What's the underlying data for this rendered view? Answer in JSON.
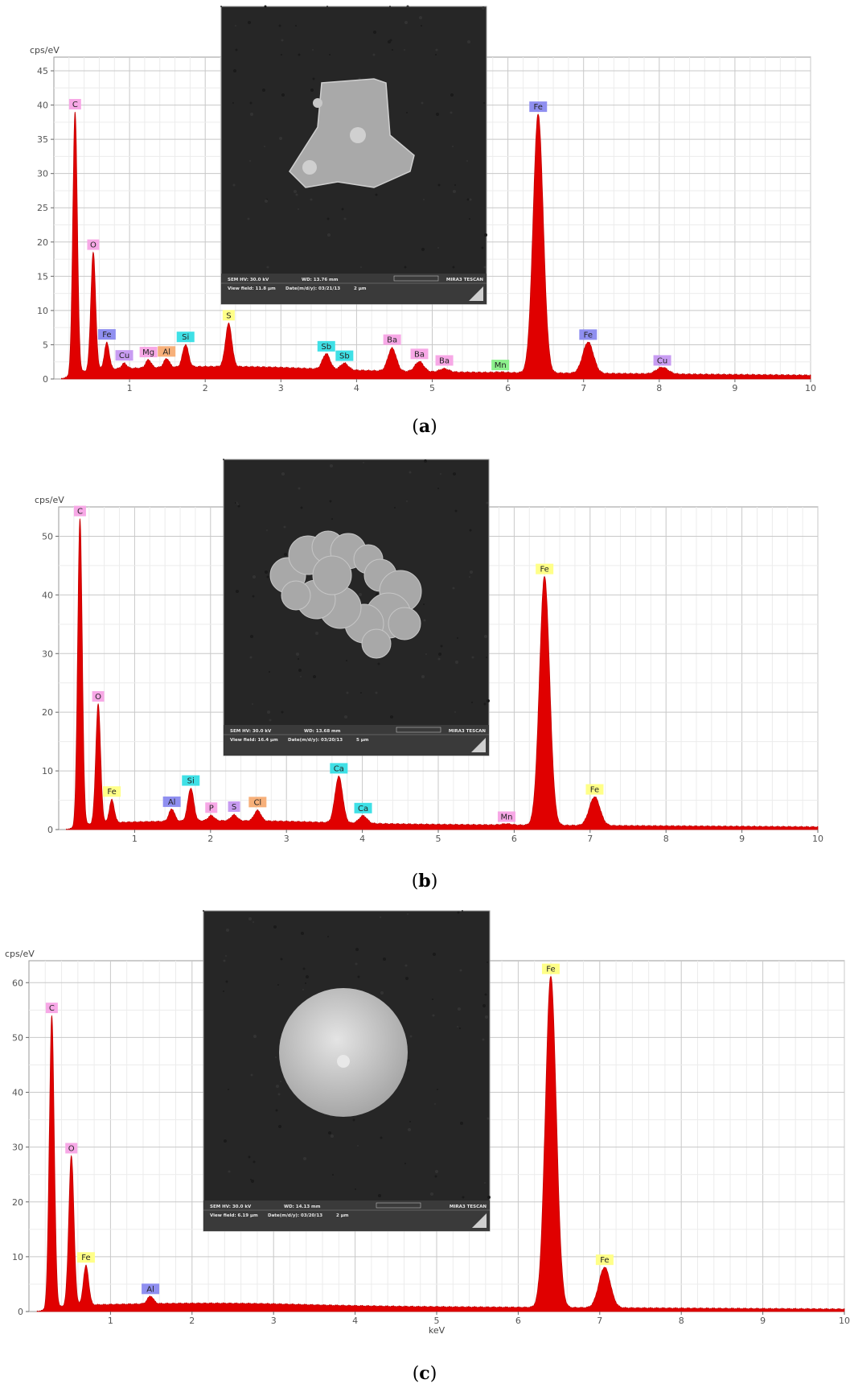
{
  "colors": {
    "spectrum_fill": "#e00000",
    "spectrum_stroke": "#c40000",
    "grid_major": "#c8c8c8",
    "grid_minor": "#ececec",
    "label_pink": "#f7a8e6",
    "label_blue": "#8f8ff0",
    "label_cyan": "#3fe0e6",
    "label_yellow": "#ffff88",
    "label_orange": "#f7b07a",
    "label_green": "#8cf08c",
    "label_violet": "#c89cf2",
    "sem_background": "#262626",
    "sem_particle": "#bdbdbd"
  },
  "chart_data": [
    {
      "type": "area",
      "caption": "(a)",
      "caption_letter": "a",
      "ylabel": "cps/eV",
      "xlabel": "",
      "xlim": [
        0,
        10
      ],
      "ylim": [
        0,
        47
      ],
      "x_ticks": [
        1,
        2,
        3,
        4,
        5,
        6,
        7,
        8,
        9,
        10
      ],
      "y_ticks": [
        0,
        5,
        10,
        15,
        20,
        25,
        30,
        35,
        40,
        45
      ],
      "grid": true,
      "baseline": 1.2,
      "peaks": [
        {
          "label": "C",
          "x": 0.28,
          "y": 39,
          "color": "pink"
        },
        {
          "label": "O",
          "x": 0.52,
          "y": 18,
          "color": "pink"
        },
        {
          "label": "Fe",
          "x": 0.7,
          "y": 4.6,
          "color": "blue"
        },
        {
          "label": "Cu",
          "x": 0.93,
          "y": 1.5,
          "color": "violet"
        },
        {
          "label": "Mg",
          "x": 1.25,
          "y": 1.9,
          "color": "pink"
        },
        {
          "label": "Al",
          "x": 1.49,
          "y": 2.0,
          "color": "orange"
        },
        {
          "label": "Si",
          "x": 1.74,
          "y": 4.0,
          "color": "cyan"
        },
        {
          "label": "S",
          "x": 2.31,
          "y": 7.0,
          "color": "yellow"
        },
        {
          "label": "Sb",
          "x": 3.6,
          "y": 3.0,
          "color": "cyan"
        },
        {
          "label": "Sb",
          "x": 3.84,
          "y": 1.7,
          "color": "cyan"
        },
        {
          "label": "Ba",
          "x": 4.47,
          "y": 4.1,
          "color": "pink"
        },
        {
          "label": "Ba",
          "x": 4.83,
          "y": 2.2,
          "color": "pink"
        },
        {
          "label": "Ba",
          "x": 5.16,
          "y": 1.2,
          "color": "pink"
        },
        {
          "label": "Mn",
          "x": 5.9,
          "y": 0.8,
          "color": "green"
        },
        {
          "label": "Fe",
          "x": 6.4,
          "y": 38.5,
          "color": "blue"
        },
        {
          "label": "Fe",
          "x": 7.06,
          "y": 5.3,
          "color": "blue"
        },
        {
          "label": "Cu",
          "x": 8.04,
          "y": 1.7,
          "color": "violet"
        }
      ],
      "sem": {
        "hv": "SEM HV: 30.0 kV",
        "wd": "WD: 13.76 mm",
        "brand": "MIRA3 TESCAN",
        "view_field": "View field: 11.8 µm",
        "date": "Date(m/d/y): 03/21/13",
        "scale": "2 µm"
      }
    },
    {
      "type": "area",
      "caption": "(b)",
      "caption_letter": "b",
      "ylabel": "cps/eV",
      "xlabel": "",
      "xlim": [
        0,
        10
      ],
      "ylim": [
        0,
        55
      ],
      "x_ticks": [
        1,
        2,
        3,
        4,
        5,
        6,
        7,
        8,
        9,
        10
      ],
      "y_ticks": [
        0,
        10,
        20,
        30,
        40,
        50
      ],
      "grid": true,
      "baseline": 1.0,
      "peaks": [
        {
          "label": "C",
          "x": 0.28,
          "y": 53,
          "color": "pink"
        },
        {
          "label": "O",
          "x": 0.52,
          "y": 21,
          "color": "pink"
        },
        {
          "label": "Fe",
          "x": 0.7,
          "y": 4.5,
          "color": "yellow"
        },
        {
          "label": "Al",
          "x": 1.49,
          "y": 2.7,
          "color": "blue"
        },
        {
          "label": "Si",
          "x": 1.74,
          "y": 6.2,
          "color": "cyan"
        },
        {
          "label": "P",
          "x": 2.01,
          "y": 1.5,
          "color": "pink"
        },
        {
          "label": "S",
          "x": 2.31,
          "y": 1.6,
          "color": "violet"
        },
        {
          "label": "Cl",
          "x": 2.62,
          "y": 2.4,
          "color": "orange"
        },
        {
          "label": "Ca",
          "x": 3.69,
          "y": 8.5,
          "color": "cyan"
        },
        {
          "label": "Ca",
          "x": 4.01,
          "y": 1.9,
          "color": "cyan"
        },
        {
          "label": "Mn",
          "x": 5.9,
          "y": 0.8,
          "color": "pink"
        },
        {
          "label": "Fe",
          "x": 6.4,
          "y": 43,
          "color": "yellow"
        },
        {
          "label": "Fe",
          "x": 7.06,
          "y": 5.5,
          "color": "yellow"
        }
      ],
      "sem": {
        "hv": "SEM HV: 30.0 kV",
        "wd": "WD: 13.68 mm",
        "brand": "MIRA3 TESCAN",
        "view_field": "View field: 16.4 µm",
        "date": "Date(m/d/y): 03/20/13",
        "scale": "5 µm"
      }
    },
    {
      "type": "area",
      "caption": "(c)",
      "caption_letter": "c",
      "ylabel": "cps/eV",
      "xlabel": "keV",
      "xlim": [
        0,
        10
      ],
      "ylim": [
        0,
        64
      ],
      "x_ticks": [
        1,
        2,
        3,
        4,
        5,
        6,
        7,
        8,
        9,
        10
      ],
      "y_ticks": [
        0,
        10,
        20,
        30,
        40,
        50,
        60
      ],
      "grid": true,
      "baseline": 1.0,
      "peaks": [
        {
          "label": "C",
          "x": 0.28,
          "y": 54,
          "color": "pink"
        },
        {
          "label": "O",
          "x": 0.52,
          "y": 28,
          "color": "pink"
        },
        {
          "label": "Fe",
          "x": 0.7,
          "y": 7.8,
          "color": "yellow"
        },
        {
          "label": "Al",
          "x": 1.49,
          "y": 2.0,
          "color": "blue"
        },
        {
          "label": "Fe",
          "x": 6.4,
          "y": 61,
          "color": "yellow"
        },
        {
          "label": "Fe",
          "x": 7.06,
          "y": 8.0,
          "color": "yellow"
        }
      ],
      "sem": {
        "hv": "SEM HV: 30.0 kV",
        "wd": "WD: 14.13 mm",
        "brand": "MIRA3 TESCAN",
        "view_field": "View field: 6.19 µm",
        "date": "Date(m/d/y): 03/20/13",
        "scale": "2 µm"
      }
    }
  ]
}
